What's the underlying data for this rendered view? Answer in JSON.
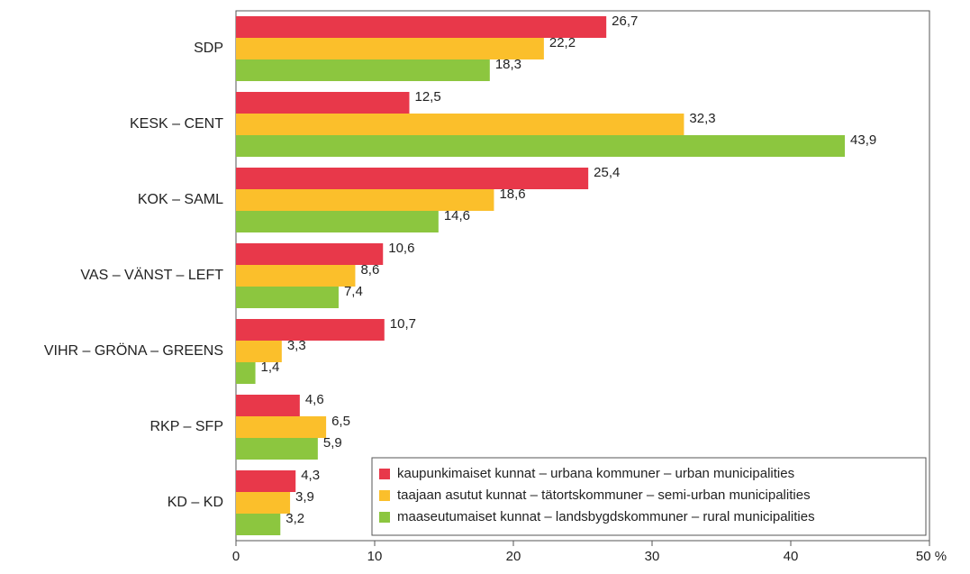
{
  "chart_data": {
    "type": "barh",
    "categories": [
      "SDP",
      "KESK – CENT",
      "KOK – SAML",
      "VAS – VÄNST – LEFT",
      "VIHR – GRÖNA – GREENS",
      "RKP – SFP",
      "KD – KD"
    ],
    "series": [
      {
        "name": "kaupunkimaiset kunnat – urbana kommuner – urban municipalities",
        "color": "#e8384a",
        "values": [
          26.7,
          12.5,
          25.4,
          10.6,
          10.7,
          4.6,
          4.3
        ],
        "value_labels": [
          "26,7",
          "12,5",
          "25,4",
          "10,6",
          "10,7",
          "4,6",
          "4,3"
        ]
      },
      {
        "name": "taajaan asutut kunnat – tätortskommuner – semi-urban municipalities",
        "color": "#fbbf2b",
        "values": [
          22.2,
          32.3,
          18.6,
          8.6,
          3.3,
          6.5,
          3.9
        ],
        "value_labels": [
          "22,2",
          "32,3",
          "18,6",
          "8,6",
          "3,3",
          "6,5",
          "3,9"
        ]
      },
      {
        "name": "maaseutumaiset kunnat – landsbygdskommuner – rural municipalities",
        "color": "#8cc63f",
        "values": [
          18.3,
          43.9,
          14.6,
          7.4,
          1.4,
          5.9,
          3.2
        ],
        "value_labels": [
          "18,3",
          "43,9",
          "14,6",
          "7,4",
          "1,4",
          "5,9",
          "3,2"
        ]
      }
    ],
    "xlim": [
      0,
      50
    ],
    "xticks": [
      0,
      10,
      20,
      30,
      40,
      {
        "value": 50,
        "label": "50 %"
      }
    ],
    "legend": "lower right"
  }
}
